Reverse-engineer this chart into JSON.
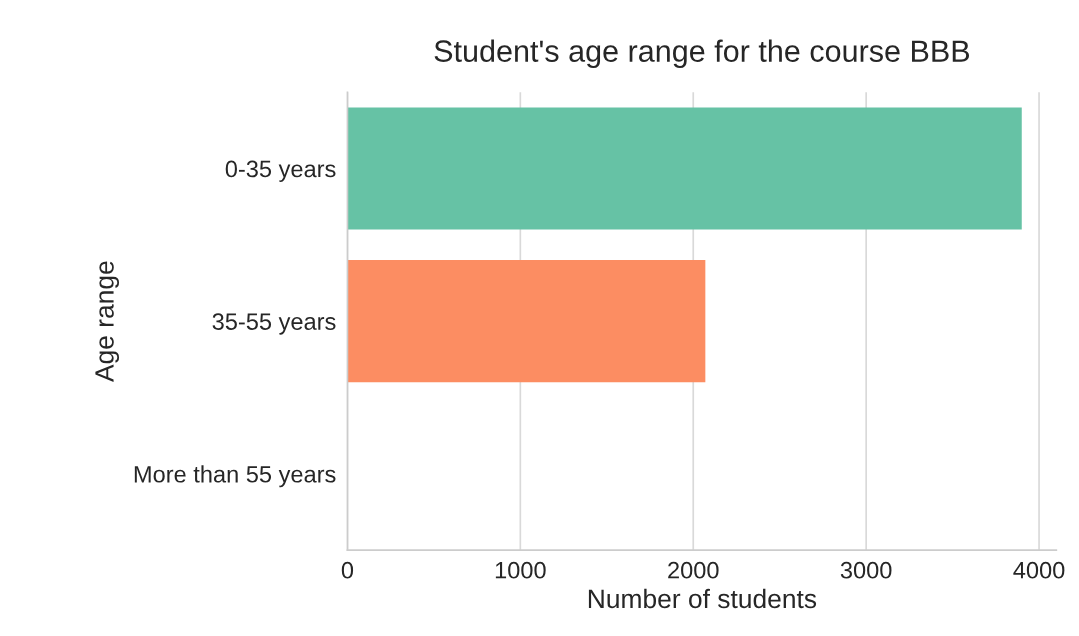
{
  "chart_data": {
    "type": "bar",
    "orientation": "horizontal",
    "title": "Student's age range for the course BBB",
    "xlabel": "Number of students",
    "ylabel": "Age range",
    "categories": [
      "0-35 years",
      "35-55 years",
      "More than 55 years"
    ],
    "values": [
      3900,
      2070,
      0
    ],
    "colors": [
      "#66c2a5",
      "#fc8d62",
      "#8da0cb"
    ],
    "xlim": [
      0,
      4100
    ],
    "xticks": [
      0,
      1000,
      2000,
      3000,
      4000
    ],
    "grid": "x"
  }
}
